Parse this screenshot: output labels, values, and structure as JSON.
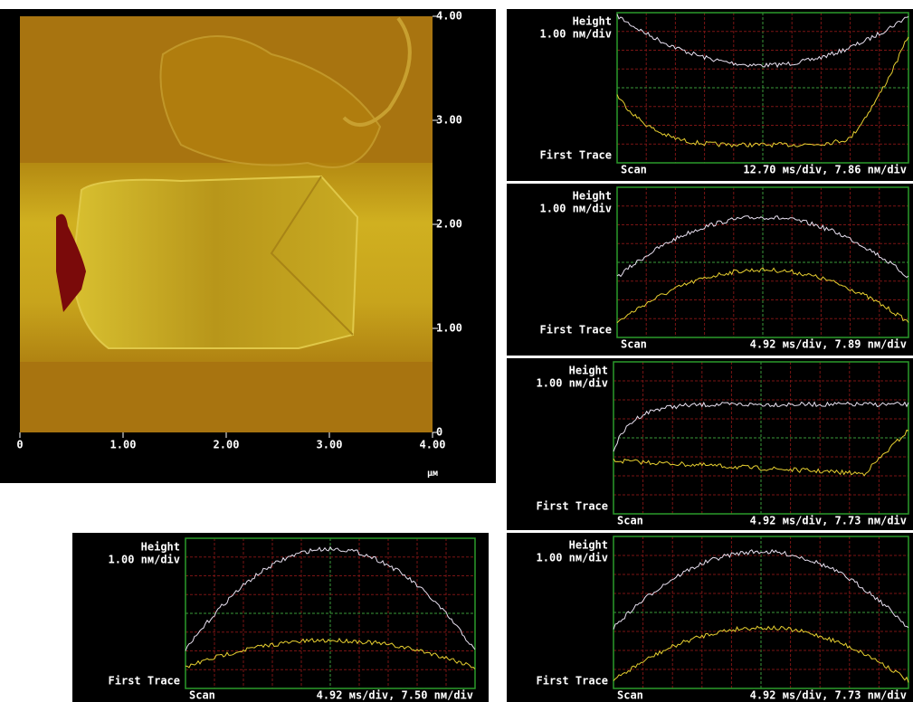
{
  "image": {
    "x_ticks": [
      "0",
      "1.00",
      "2.00",
      "3.00",
      "4.00"
    ],
    "y_ticks": [
      "4.00",
      "3.00",
      "2.00",
      "1.00",
      "0"
    ],
    "unit": "μм"
  },
  "scopes": [
    {
      "label": "Height",
      "scale": "1.00 nм/div",
      "trace": "First Trace",
      "mode": "Scan",
      "rate": "12.70 мs/div, 7.86 nм/div"
    },
    {
      "label": "Height",
      "scale": "1.00 nм/div",
      "trace": "First Trace",
      "mode": "Scan",
      "rate": "4.92 мs/div, 7.89 nм/div"
    },
    {
      "label": "Height",
      "scale": "1.00 nм/div",
      "trace": "First Trace",
      "mode": "Scan",
      "rate": "4.92 мs/div, 7.73 nм/div"
    },
    {
      "label": "Height",
      "scale": "1.00 nм/div",
      "trace": "First Trace",
      "mode": "Scan",
      "rate": "4.92 мs/div, 7.73 nм/div"
    },
    {
      "label": "Height",
      "scale": "1.00 nм/div",
      "trace": "First Trace",
      "mode": "Scan",
      "rate": "4.92 мs/div, 7.50 nм/div"
    }
  ]
}
